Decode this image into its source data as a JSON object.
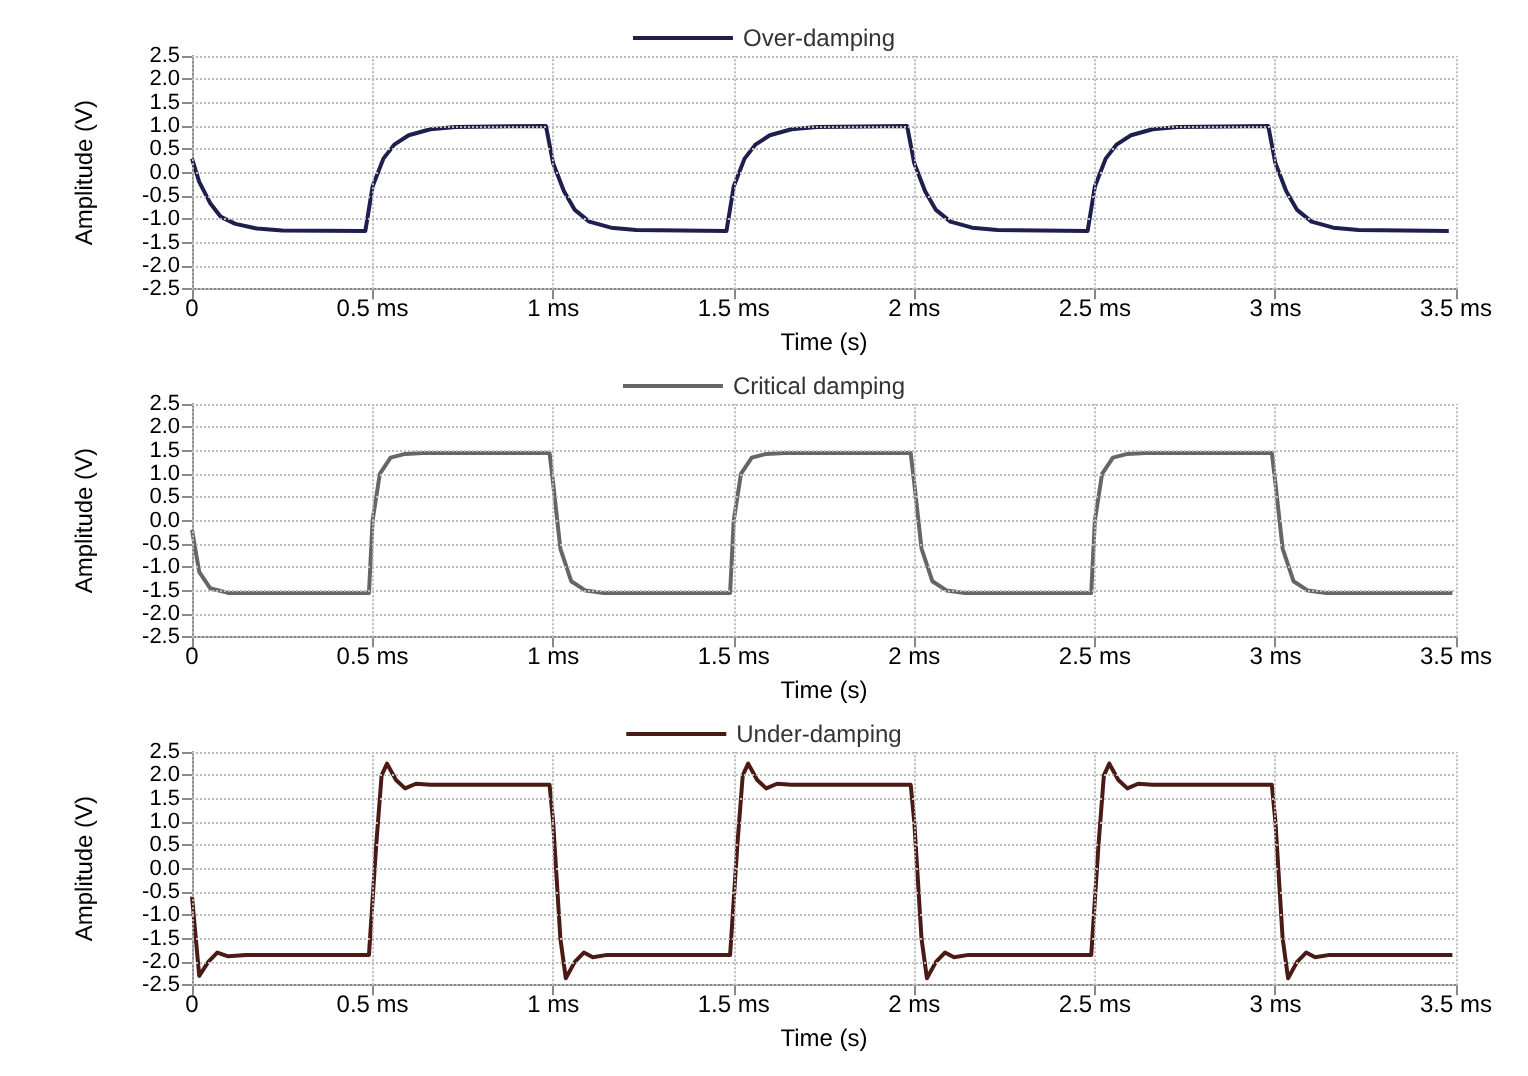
{
  "chart_data": [
    {
      "type": "line",
      "xlabel": "Time (s)",
      "ylabel": "Amplitude (V)",
      "legend": "top",
      "grid": true,
      "marker": "none",
      "line_style": "solid",
      "xlim": [
        0,
        3.5
      ],
      "xticks": [
        {
          "value": 0,
          "label": "0"
        },
        {
          "value": 0.5,
          "label": "0.5 ms"
        },
        {
          "value": 1,
          "label": "1 ms"
        },
        {
          "value": 1.5,
          "label": "1.5 ms"
        },
        {
          "value": 2,
          "label": "2 ms"
        },
        {
          "value": 2.5,
          "label": "2.5 ms"
        },
        {
          "value": 3,
          "label": "3 ms"
        },
        {
          "value": 3.5,
          "label": "3.5 ms"
        }
      ],
      "ylim": [
        -2.5,
        2.5
      ],
      "yticks": [
        -2.5,
        {
          "value": -2,
          "label": "-2.0"
        },
        -1.5,
        {
          "value": -1,
          "label": "-1.0"
        },
        -0.5,
        {
          "value": 0,
          "label": "0.0"
        },
        0.5,
        {
          "value": 1,
          "label": "1.0"
        },
        1.5,
        {
          "value": 2,
          "label": "2.0"
        },
        2.5
      ],
      "series": [
        {
          "name": "Over-damping",
          "color": "#1f1f4f",
          "x": [
            0,
            0.02,
            0.05,
            0.08,
            0.12,
            0.18,
            0.25,
            0.48,
            0.5,
            0.53,
            0.56,
            0.6,
            0.66,
            0.73,
            0.98,
            1.0,
            1.03,
            1.06,
            1.1,
            1.16,
            1.23,
            1.48,
            1.5,
            1.53,
            1.56,
            1.6,
            1.66,
            1.73,
            1.98,
            2.0,
            2.03,
            2.06,
            2.1,
            2.16,
            2.23,
            2.48,
            2.5,
            2.53,
            2.56,
            2.6,
            2.66,
            2.73,
            2.98,
            3.0,
            3.03,
            3.06,
            3.1,
            3.16,
            3.23,
            3.48
          ],
          "values": [
            0.3,
            -0.2,
            -0.65,
            -0.95,
            -1.1,
            -1.2,
            -1.24,
            -1.25,
            -0.3,
            0.3,
            0.6,
            0.8,
            0.93,
            0.98,
            1.0,
            0.2,
            -0.4,
            -0.8,
            -1.05,
            -1.18,
            -1.23,
            -1.25,
            -0.3,
            0.3,
            0.6,
            0.8,
            0.93,
            0.98,
            1.0,
            0.2,
            -0.4,
            -0.8,
            -1.05,
            -1.18,
            -1.23,
            -1.25,
            -0.3,
            0.3,
            0.6,
            0.8,
            0.93,
            0.98,
            1.0,
            0.2,
            -0.4,
            -0.8,
            -1.05,
            -1.18,
            -1.23,
            -1.25
          ]
        }
      ]
    },
    {
      "type": "line",
      "xlabel": "Time (s)",
      "ylabel": "Amplitude (V)",
      "legend": "top",
      "grid": true,
      "marker": "none",
      "line_style": "solid",
      "xlim": [
        0,
        3.5
      ],
      "xticks": [
        {
          "value": 0,
          "label": "0"
        },
        {
          "value": 0.5,
          "label": "0.5 ms"
        },
        {
          "value": 1,
          "label": "1 ms"
        },
        {
          "value": 1.5,
          "label": "1.5 ms"
        },
        {
          "value": 2,
          "label": "2 ms"
        },
        {
          "value": 2.5,
          "label": "2.5 ms"
        },
        {
          "value": 3,
          "label": "3 ms"
        },
        {
          "value": 3.5,
          "label": "3.5 ms"
        }
      ],
      "ylim": [
        -2.5,
        2.5
      ],
      "yticks": [
        -2.5,
        {
          "value": -2,
          "label": "-2.0"
        },
        -1.5,
        {
          "value": -1,
          "label": "-1.0"
        },
        -0.5,
        {
          "value": 0,
          "label": "0.0"
        },
        0.5,
        {
          "value": 1,
          "label": "1.0"
        },
        1.5,
        {
          "value": 2,
          "label": "2.0"
        },
        2.5
      ],
      "series": [
        {
          "name": "Critical damping",
          "color": "#666666",
          "x": [
            0,
            0.02,
            0.05,
            0.1,
            0.49,
            0.5,
            0.52,
            0.55,
            0.59,
            0.64,
            0.99,
            1.0,
            1.02,
            1.05,
            1.09,
            1.14,
            1.49,
            1.5,
            1.52,
            1.55,
            1.59,
            1.64,
            1.99,
            2.0,
            2.02,
            2.05,
            2.09,
            2.14,
            2.49,
            2.5,
            2.52,
            2.55,
            2.59,
            2.64,
            2.99,
            3.0,
            3.02,
            3.05,
            3.09,
            3.14,
            3.49
          ],
          "values": [
            -0.2,
            -1.1,
            -1.45,
            -1.55,
            -1.55,
            0.0,
            1.0,
            1.35,
            1.43,
            1.45,
            1.45,
            0.8,
            -0.6,
            -1.3,
            -1.5,
            -1.55,
            -1.55,
            0.0,
            1.0,
            1.35,
            1.43,
            1.45,
            1.45,
            0.8,
            -0.6,
            -1.3,
            -1.5,
            -1.55,
            -1.55,
            0.0,
            1.0,
            1.35,
            1.43,
            1.45,
            1.45,
            0.8,
            -0.6,
            -1.3,
            -1.5,
            -1.55,
            -1.55
          ]
        }
      ]
    },
    {
      "type": "line",
      "xlabel": "Time (s)",
      "ylabel": "Amplitude (V)",
      "legend": "top",
      "grid": true,
      "marker": "none",
      "line_style": "solid",
      "xlim": [
        0,
        3.5
      ],
      "xticks": [
        {
          "value": 0,
          "label": "0"
        },
        {
          "value": 0.5,
          "label": "0.5 ms"
        },
        {
          "value": 1,
          "label": "1 ms"
        },
        {
          "value": 1.5,
          "label": "1.5 ms"
        },
        {
          "value": 2,
          "label": "2 ms"
        },
        {
          "value": 2.5,
          "label": "2.5 ms"
        },
        {
          "value": 3,
          "label": "3 ms"
        },
        {
          "value": 3.5,
          "label": "3.5 ms"
        }
      ],
      "ylim": [
        -2.5,
        2.5
      ],
      "yticks": [
        -2.5,
        {
          "value": -2,
          "label": "-2.0"
        },
        -1.5,
        {
          "value": -1,
          "label": "-1.0"
        },
        -0.5,
        {
          "value": 0,
          "label": "0.0"
        },
        0.5,
        {
          "value": 1,
          "label": "1.0"
        },
        1.5,
        {
          "value": 2,
          "label": "2.0"
        },
        2.5
      ],
      "series": [
        {
          "name": "Under-damping",
          "color": "#4a1a14",
          "x": [
            0,
            0.02,
            0.045,
            0.07,
            0.1,
            0.15,
            0.49,
            0.51,
            0.525,
            0.54,
            0.565,
            0.59,
            0.62,
            0.66,
            0.99,
            1.0,
            1.02,
            1.035,
            1.06,
            1.085,
            1.11,
            1.15,
            1.49,
            1.51,
            1.525,
            1.54,
            1.565,
            1.59,
            1.62,
            1.66,
            1.99,
            2.0,
            2.02,
            2.035,
            2.06,
            2.085,
            2.11,
            2.15,
            2.49,
            2.51,
            2.525,
            2.54,
            2.565,
            2.59,
            2.62,
            2.66,
            2.99,
            3.0,
            3.02,
            3.035,
            3.06,
            3.085,
            3.11,
            3.15,
            3.49
          ],
          "values": [
            -0.6,
            -2.3,
            -2.0,
            -1.8,
            -1.88,
            -1.85,
            -1.85,
            0.5,
            2.0,
            2.25,
            1.9,
            1.72,
            1.82,
            1.8,
            1.8,
            1.0,
            -1.5,
            -2.35,
            -2.0,
            -1.8,
            -1.9,
            -1.85,
            -1.85,
            0.5,
            2.0,
            2.25,
            1.9,
            1.72,
            1.82,
            1.8,
            1.8,
            1.0,
            -1.5,
            -2.35,
            -2.0,
            -1.8,
            -1.9,
            -1.85,
            -1.85,
            0.5,
            2.0,
            2.25,
            1.9,
            1.72,
            1.82,
            1.8,
            1.8,
            1.0,
            -1.5,
            -2.35,
            -2.0,
            -1.8,
            -1.9,
            -1.85,
            -1.85
          ]
        }
      ]
    }
  ]
}
